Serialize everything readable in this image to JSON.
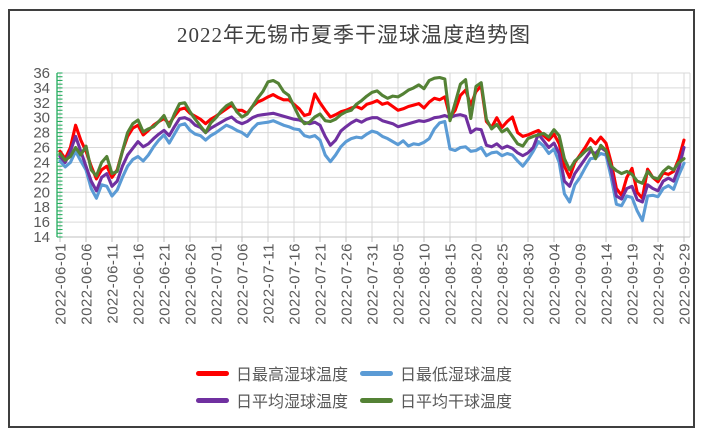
{
  "title": "2022年无锡市夏季干湿球温度趋势图",
  "chart_data": {
    "type": "line",
    "x_start": "2022-06-01",
    "x_end": "2022-09-29",
    "points_per_series": 121,
    "x_tick_labels": [
      "2022-06-01",
      "2022-06-06",
      "2022-06-11",
      "2022-06-16",
      "2022-06-21",
      "2022-06-26",
      "2022-07-01",
      "2022-07-06",
      "2022-07-11",
      "2022-07-16",
      "2022-07-21",
      "2022-07-26",
      "2022-07-31",
      "2022-08-05",
      "2022-08-10",
      "2022-08-15",
      "2022-08-20",
      "2022-08-25",
      "2022-08-30",
      "2022-09-04",
      "2022-09-09",
      "2022-09-14",
      "2022-09-19",
      "2022-09-24",
      "2022-09-29"
    ],
    "y_tick_labels": [
      "36",
      "34",
      "32",
      "30",
      "28",
      "26",
      "24",
      "22",
      "20",
      "18",
      "16",
      "14"
    ],
    "ylim": [
      14,
      36
    ],
    "y_tick_step": 2,
    "grid": true,
    "legend_position": "bottom",
    "axis_tick_color": "#27ae60",
    "axis_line_color": "#bfbfbf",
    "gridline_color": "#d9d9d9",
    "label_color": "#595959",
    "title_color": "#404040",
    "series": [
      {
        "name": "日最高湿球温度",
        "color": "#fe0000",
        "values": [
          25.5,
          24.5,
          26,
          29,
          27,
          25.5,
          23.5,
          21.8,
          23,
          23.5,
          22,
          23,
          25.5,
          27.5,
          28.6,
          29,
          27.7,
          28.3,
          29,
          29.5,
          29.9,
          29.2,
          30.2,
          31.1,
          31.3,
          30.6,
          30.2,
          29.8,
          29.2,
          29.8,
          30.2,
          30.7,
          31.2,
          31.7,
          31,
          31,
          30.6,
          31.5,
          32.1,
          32.4,
          32.8,
          33.1,
          32.7,
          32.4,
          32.4,
          31.8,
          31.2,
          30.3,
          30.5,
          33.2,
          32,
          31,
          30.1,
          30.4,
          30.8,
          31,
          31.3,
          31.5,
          31.2,
          31.8,
          32,
          32.3,
          31.8,
          32,
          31.5,
          31,
          31.2,
          31.5,
          31.7,
          31.9,
          31.3,
          32.1,
          32.6,
          32.4,
          32.8,
          30.1,
          31,
          33,
          33.7,
          31.7,
          33.5,
          34.3,
          29.5,
          28.7,
          30,
          28.7,
          29.5,
          30.1,
          28,
          27.5,
          27.7,
          28,
          28.3,
          27.6,
          27,
          27.8,
          26.5,
          23.5,
          22,
          24,
          25,
          26,
          27.2,
          26.5,
          27.4,
          26.6,
          24,
          20.5,
          19.6,
          22,
          23.2,
          20,
          19.2,
          23.1,
          22,
          21.4,
          22.6,
          22.4,
          22.8,
          24.5,
          27
        ]
      },
      {
        "name": "日最低湿球温度",
        "color": "#5b9bd5",
        "values": [
          24.2,
          23.4,
          24,
          25.5,
          24.2,
          23,
          20.5,
          19.2,
          21,
          20.8,
          19.5,
          20.3,
          22,
          23.5,
          24.4,
          24.8,
          24.2,
          25,
          26.1,
          27,
          27.7,
          26.6,
          27.8,
          29,
          29.2,
          28.3,
          27.8,
          27.6,
          27,
          27.6,
          28,
          28.5,
          29,
          28.7,
          28.3,
          28,
          27.5,
          28.5,
          29.2,
          29.3,
          29.4,
          29.6,
          29.3,
          29,
          28.8,
          28.5,
          28.4,
          27.6,
          27.4,
          27.6,
          27,
          25,
          24.1,
          25,
          26.1,
          26.8,
          27.2,
          27.4,
          27.3,
          27.8,
          28.2,
          28,
          27.5,
          27.2,
          26.8,
          26.4,
          26.9,
          26.2,
          26.5,
          26.4,
          26.7,
          27.2,
          28.5,
          29.3,
          29.5,
          25.8,
          25.6,
          26,
          26.1,
          25.5,
          25.6,
          26,
          24.9,
          25.3,
          25.4,
          24.9,
          25.2,
          25,
          24.2,
          23.5,
          24.4,
          25.5,
          26.8,
          26.2,
          25.2,
          25.8,
          24,
          19.8,
          18.7,
          21,
          22,
          23.3,
          24.5,
          24.6,
          25.2,
          25,
          22,
          18.4,
          18.2,
          19.5,
          19.3,
          17.5,
          16.2,
          19.5,
          19.6,
          19.4,
          20.5,
          20.9,
          20.4,
          22.3,
          23.9
        ]
      },
      {
        "name": "日平均湿球温度",
        "color": "#7030a0",
        "values": [
          24.8,
          24,
          25.5,
          27.5,
          25.5,
          23.5,
          21.5,
          20.2,
          22,
          22.5,
          20.8,
          21.5,
          23.5,
          25,
          25.9,
          26.8,
          26.1,
          26.5,
          27.2,
          27.8,
          28.3,
          27.6,
          28.8,
          29.9,
          30,
          29.7,
          29,
          28.7,
          28,
          28.6,
          29,
          29.4,
          29.8,
          30.1,
          29.5,
          29.2,
          29.5,
          30,
          30.3,
          30.4,
          30.5,
          30.6,
          30.4,
          30.2,
          30,
          29.8,
          29.7,
          29.4,
          29.2,
          29.4,
          29,
          27.5,
          26.3,
          27,
          28.2,
          28.8,
          29.3,
          29.7,
          29.4,
          29.8,
          30,
          30,
          29.6,
          29.4,
          29.2,
          28.8,
          29,
          29.2,
          29.4,
          29.6,
          29.5,
          29.7,
          30,
          30.1,
          30.3,
          30,
          30.3,
          30.4,
          30.2,
          28,
          28.5,
          28.4,
          26.3,
          26.1,
          26.5,
          25.9,
          26.2,
          25.9,
          25.3,
          24.9,
          25.3,
          26,
          27.8,
          26.9,
          26,
          26.6,
          25.2,
          21.5,
          20.8,
          22.5,
          23.5,
          24.5,
          25.5,
          25.2,
          26,
          25.5,
          23,
          19.5,
          19.1,
          20.5,
          20.8,
          19,
          18.7,
          21,
          20.5,
          20.2,
          21.5,
          21.9,
          21.5,
          23.3,
          26
        ]
      },
      {
        "name": "日平均干球温度",
        "color": "#548235",
        "values": [
          25.2,
          24.3,
          24.8,
          26,
          25,
          26.2,
          23,
          22.2,
          24,
          24.8,
          22.5,
          22.8,
          25.5,
          28,
          29.2,
          29.7,
          28.1,
          28.5,
          28.8,
          29.5,
          30.3,
          28.8,
          30.5,
          31.9,
          32,
          30.8,
          29.8,
          28.9,
          28,
          29.3,
          30,
          30.9,
          31.6,
          32,
          30.8,
          30.1,
          30.5,
          31.5,
          32.6,
          33.5,
          34.8,
          35,
          34.6,
          33.5,
          33,
          31.5,
          30.1,
          29.2,
          29.4,
          30.1,
          30.5,
          29.6,
          29.5,
          29.8,
          30.4,
          30.8,
          31,
          31.8,
          32.3,
          32.9,
          33.4,
          33.6,
          33,
          32.6,
          32.9,
          32.8,
          33.2,
          33.7,
          34,
          34.4,
          33.9,
          35,
          35.3,
          35.4,
          35.2,
          29.6,
          32,
          34.5,
          35.1,
          29.9,
          34.2,
          34.7,
          29.8,
          28.5,
          29.1,
          28.1,
          28.5,
          27.5,
          26.5,
          26.2,
          27.2,
          27.5,
          27.7,
          27.9,
          27.4,
          28.4,
          27.6,
          24.5,
          23,
          24.2,
          24.8,
          25.5,
          26,
          24.5,
          26.3,
          25.6,
          23.5,
          22.9,
          22.5,
          22.8,
          22.4,
          21.5,
          21.2,
          22.8,
          22,
          21.8,
          22.8,
          23.4,
          23,
          24,
          24.5
        ]
      }
    ]
  }
}
